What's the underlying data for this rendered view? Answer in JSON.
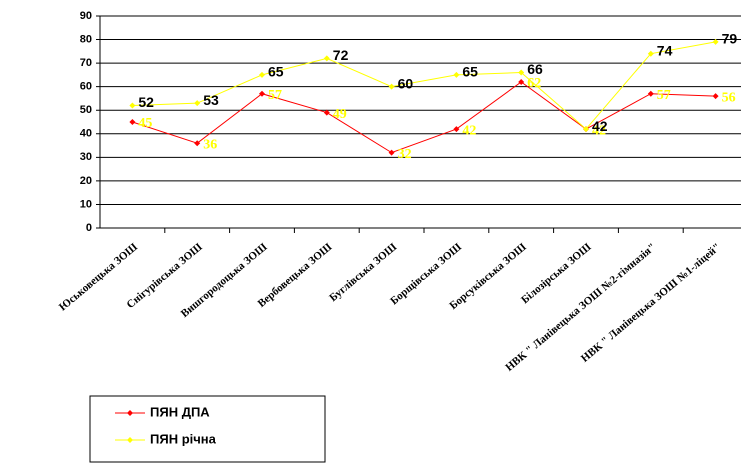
{
  "chart_data": {
    "type": "line",
    "categories": [
      "Юськовецька ЗОШ",
      "Снігурівська ЗОШ",
      "Вишгородоцька ЗОШ",
      "Вербовецька ЗОШ",
      "Буглівська ЗОШ",
      "Борщівська ЗОШ",
      "Борсуківська ЗОШ",
      "Білозірська ЗОШ",
      "НВК \" Ланівецька ЗОШ №2-гімназія\"",
      "НВК \" Ланівецька ЗОШ №1-ліцей\""
    ],
    "series": [
      {
        "name": "ПЯН ДПА",
        "color": "#ff0000",
        "values": [
          45,
          36,
          57,
          49,
          32,
          42,
          62,
          42,
          57,
          56
        ]
      },
      {
        "name": "ПЯН річна",
        "color": "#ffff00",
        "values": [
          52,
          53,
          65,
          72,
          60,
          65,
          66,
          42,
          74,
          79
        ]
      }
    ],
    "ylim": [
      0,
      90
    ],
    "yticks": [
      0,
      10,
      20,
      30,
      40,
      50,
      60,
      70,
      80,
      90
    ],
    "grid": true,
    "legend": "bottom-left"
  }
}
